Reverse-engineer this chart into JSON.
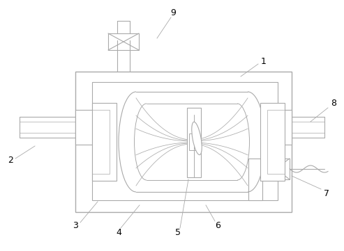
{
  "bg_color": "#ffffff",
  "lc": "#aaaaaa",
  "lc2": "#999999",
  "fig_width": 4.93,
  "fig_height": 3.61,
  "dpi": 100
}
